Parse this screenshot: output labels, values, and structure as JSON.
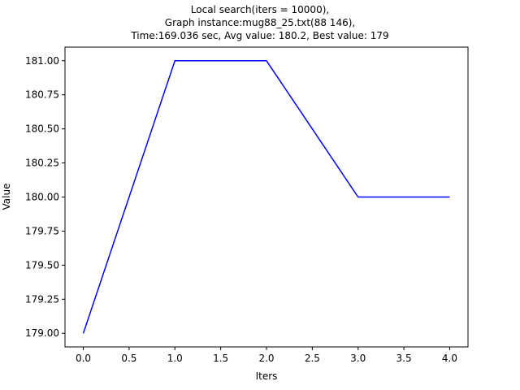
{
  "chart_data": {
    "type": "line",
    "title_lines": [
      "Local search(iters = 10000),",
      "Graph instance:mug88_25.txt(88 146),",
      "Time:169.036 sec, Avg value: 180.2, Best value: 179"
    ],
    "xlabel": "Iters",
    "ylabel": "Value",
    "x": [
      0,
      1,
      2,
      3,
      4
    ],
    "series": [
      {
        "values": [
          179,
          181,
          181,
          180,
          180
        ],
        "color": "#0000ff"
      }
    ],
    "xlim": [
      -0.2,
      4.2
    ],
    "ylim": [
      178.9,
      181.1
    ],
    "xticks": [
      "0.0",
      "0.5",
      "1.0",
      "1.5",
      "2.0",
      "2.5",
      "3.0",
      "3.5",
      "4.0"
    ],
    "yticks": [
      "179.00",
      "179.25",
      "179.50",
      "179.75",
      "180.00",
      "180.25",
      "180.50",
      "180.75",
      "181.00"
    ],
    "grid": false,
    "legend": "none"
  }
}
